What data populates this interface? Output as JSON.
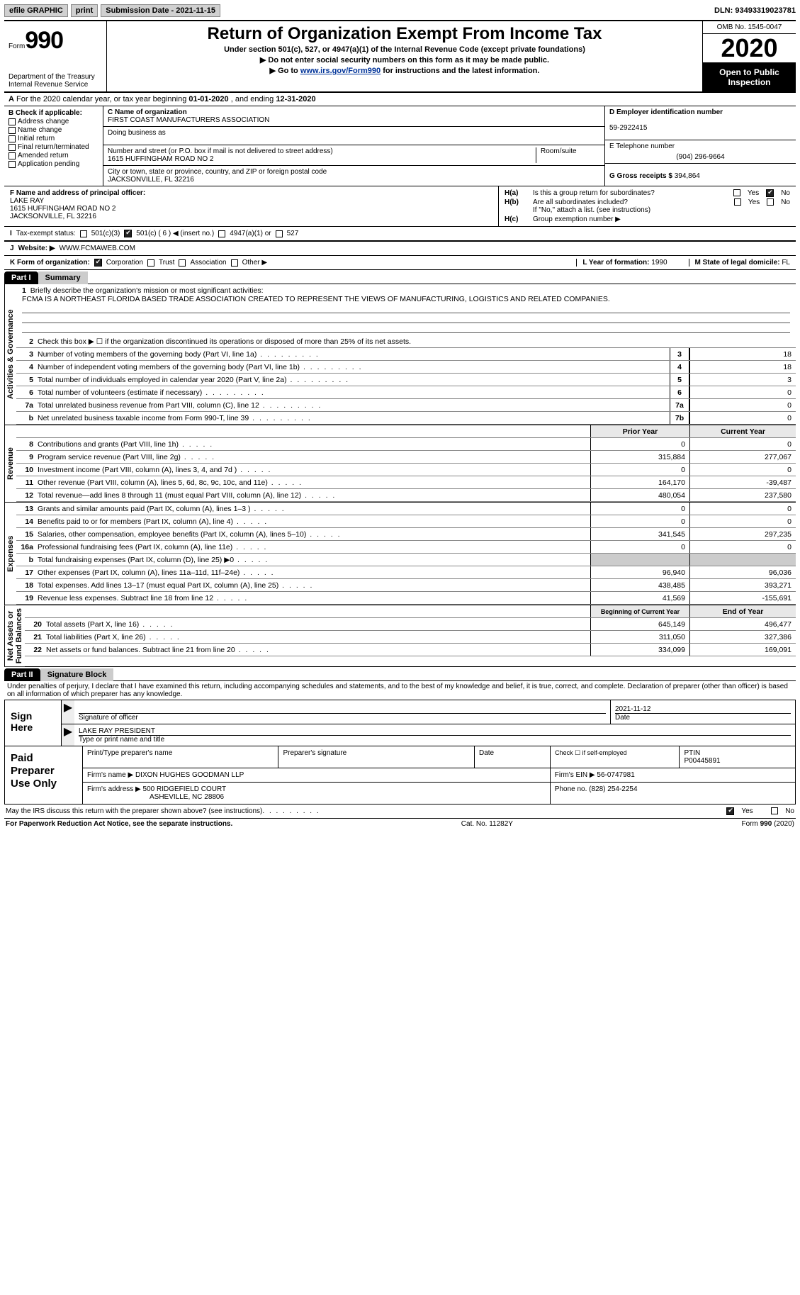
{
  "topbar": {
    "efile": "efile GRAPHIC",
    "print": "print",
    "sub_label": "Submission Date - ",
    "sub_date": "2021-11-15",
    "dln_label": "DLN: ",
    "dln": "93493319023781"
  },
  "header": {
    "form_word": "Form",
    "form_num": "990",
    "dept": "Department of the Treasury\nInternal Revenue Service",
    "title": "Return of Organization Exempt From Income Tax",
    "sub1": "Under section 501(c), 527, or 4947(a)(1) of the Internal Revenue Code (except private foundations)",
    "sub2": "Do not enter social security numbers on this form as it may be made public.",
    "sub3_pre": "Go to ",
    "sub3_link": "www.irs.gov/Form990",
    "sub3_post": " for instructions and the latest information.",
    "omb": "OMB No. 1545-0047",
    "year": "2020",
    "open": "Open to Public Inspection"
  },
  "rowA": {
    "text_pre": "For the 2020 calendar year, or tax year beginning ",
    "begin": "01-01-2020",
    "mid": " , and ending ",
    "end": "12-31-2020"
  },
  "colB": {
    "header": "B Check if applicable:",
    "items": [
      "Address change",
      "Name change",
      "Initial return",
      "Final return/terminated",
      "Amended return",
      "Application pending"
    ]
  },
  "colC": {
    "c_label": "C Name of organization",
    "org": "FIRST COAST MANUFACTURERS ASSOCIATION",
    "dba_label": "Doing business as",
    "addr_label": "Number and street (or P.O. box if mail is not delivered to street address)",
    "room_label": "Room/suite",
    "addr": "1615 HUFFINGHAM ROAD NO 2",
    "city_label": "City or town, state or province, country, and ZIP or foreign postal code",
    "city": "JACKSONVILLE, FL  32216"
  },
  "colDE": {
    "d_label": "D Employer identification number",
    "ein": "59-2922415",
    "e_label": "E Telephone number",
    "phone": "(904) 296-9664",
    "g_label": "G Gross receipts $ ",
    "gross": "394,864"
  },
  "rowF": {
    "label": "F  Name and address of principal officer:",
    "name": "LAKE RAY",
    "addr1": "1615 HUFFINGHAM ROAD NO 2",
    "addr2": "JACKSONVILLE, FL  32216"
  },
  "rowH": {
    "ha": "Is this a group return for subordinates?",
    "hb": "Are all subordinates included?",
    "hb_note": "If \"No,\" attach a list. (see instructions)",
    "hc": "Group exemption number ▶",
    "ha_l": "H(a)",
    "hb_l": "H(b)",
    "hc_l": "H(c)",
    "yes": "Yes",
    "no": "No"
  },
  "rowI": {
    "label": "Tax-exempt status:",
    "o1": "501(c)(3)",
    "o2": "501(c) ( 6 ) ◀ (insert no.)",
    "o3": "4947(a)(1) or",
    "o4": "527"
  },
  "rowJ": {
    "label": "Website: ▶",
    "val": "WWW.FCMAWEB.COM"
  },
  "rowK": {
    "label": "K Form of organization:",
    "corp": "Corporation",
    "trust": "Trust",
    "assoc": "Association",
    "other": "Other ▶",
    "l_label": "L Year of formation: ",
    "l_val": "1990",
    "m_label": "M State of legal domicile: ",
    "m_val": "FL"
  },
  "part1": {
    "tag": "Part I",
    "title": "Summary"
  },
  "briefly": {
    "num": "1",
    "label": "Briefly describe the organization's mission or most significant activities:",
    "text": "FCMA IS A NORTHEAST FLORIDA BASED TRADE ASSOCIATION CREATED TO REPRESENT THE VIEWS OF MANUFACTURING, LOGISTICS AND RELATED COMPANIES."
  },
  "side": {
    "ag": "Activities & Governance",
    "rev": "Revenue",
    "exp": "Expenses",
    "na": "Net Assets or\nFund Balances"
  },
  "lines_ag": [
    {
      "n": "2",
      "d": "Check this box ▶ ☐  if the organization discontinued its operations or disposed of more than 25% of its net assets."
    },
    {
      "n": "3",
      "d": "Number of voting members of the governing body (Part VI, line 1a)",
      "box": "3",
      "v": "18"
    },
    {
      "n": "4",
      "d": "Number of independent voting members of the governing body (Part VI, line 1b)",
      "box": "4",
      "v": "18"
    },
    {
      "n": "5",
      "d": "Total number of individuals employed in calendar year 2020 (Part V, line 2a)",
      "box": "5",
      "v": "3"
    },
    {
      "n": "6",
      "d": "Total number of volunteers (estimate if necessary)",
      "box": "6",
      "v": "0"
    },
    {
      "n": "7a",
      "d": "Total unrelated business revenue from Part VIII, column (C), line 12",
      "box": "7a",
      "v": "0"
    },
    {
      "n": "b",
      "d": "Net unrelated business taxable income from Form 990-T, line 39",
      "box": "7b",
      "v": "0"
    }
  ],
  "headrow": {
    "prior": "Prior Year",
    "curr": "Current Year"
  },
  "lines_rev": [
    {
      "n": "8",
      "d": "Contributions and grants (Part VIII, line 1h)",
      "p": "0",
      "c": "0"
    },
    {
      "n": "9",
      "d": "Program service revenue (Part VIII, line 2g)",
      "p": "315,884",
      "c": "277,067"
    },
    {
      "n": "10",
      "d": "Investment income (Part VIII, column (A), lines 3, 4, and 7d )",
      "p": "0",
      "c": "0"
    },
    {
      "n": "11",
      "d": "Other revenue (Part VIII, column (A), lines 5, 6d, 8c, 9c, 10c, and 11e)",
      "p": "164,170",
      "c": "-39,487"
    },
    {
      "n": "12",
      "d": "Total revenue—add lines 8 through 11 (must equal Part VIII, column (A), line 12)",
      "p": "480,054",
      "c": "237,580"
    }
  ],
  "lines_exp": [
    {
      "n": "13",
      "d": "Grants and similar amounts paid (Part IX, column (A), lines 1–3 )",
      "p": "0",
      "c": "0"
    },
    {
      "n": "14",
      "d": "Benefits paid to or for members (Part IX, column (A), line 4)",
      "p": "0",
      "c": "0"
    },
    {
      "n": "15",
      "d": "Salaries, other compensation, employee benefits (Part IX, column (A), lines 5–10)",
      "p": "341,545",
      "c": "297,235"
    },
    {
      "n": "16a",
      "d": "Professional fundraising fees (Part IX, column (A), line 11e)",
      "p": "0",
      "c": "0"
    },
    {
      "n": "b",
      "d": "Total fundraising expenses (Part IX, column (D), line 25) ▶0",
      "p": "__shade__",
      "c": "__shade__"
    },
    {
      "n": "17",
      "d": "Other expenses (Part IX, column (A), lines 11a–11d, 11f–24e)",
      "p": "96,940",
      "c": "96,036"
    },
    {
      "n": "18",
      "d": "Total expenses. Add lines 13–17 (must equal Part IX, column (A), line 25)",
      "p": "438,485",
      "c": "393,271"
    },
    {
      "n": "19",
      "d": "Revenue less expenses. Subtract line 18 from line 12",
      "p": "41,569",
      "c": "-155,691"
    }
  ],
  "headrow2": {
    "prior": "Beginning of Current Year",
    "curr": "End of Year"
  },
  "lines_na": [
    {
      "n": "20",
      "d": "Total assets (Part X, line 16)",
      "p": "645,149",
      "c": "496,477"
    },
    {
      "n": "21",
      "d": "Total liabilities (Part X, line 26)",
      "p": "311,050",
      "c": "327,386"
    },
    {
      "n": "22",
      "d": "Net assets or fund balances. Subtract line 21 from line 20",
      "p": "334,099",
      "c": "169,091"
    }
  ],
  "part2": {
    "tag": "Part II",
    "title": "Signature Block"
  },
  "penalties": "Under penalties of perjury, I declare that I have examined this return, including accompanying schedules and statements, and to the best of my knowledge and belief, it is true, correct, and complete. Declaration of preparer (other than officer) is based on all information of which preparer has any knowledge.",
  "sign": {
    "label": "Sign Here",
    "sig_label": "Signature of officer",
    "date_label": "Date",
    "date": "2021-11-12",
    "name": "LAKE RAY PRESIDENT",
    "name_label": "Type or print name and title"
  },
  "paid": {
    "label": "Paid Preparer Use Only",
    "h1": "Print/Type preparer's name",
    "h2": "Preparer's signature",
    "h3": "Date",
    "h4_top": "Check ☐ if self-employed",
    "h5": "PTIN",
    "ptin": "P00445891",
    "firm_label": "Firm's name   ▶",
    "firm": "DIXON HUGHES GOODMAN LLP",
    "ein_label": "Firm's EIN ▶",
    "ein": "56-0747981",
    "addr_label": "Firm's address ▶",
    "addr1": "500 RIDGEFIELD COURT",
    "addr2": "ASHEVILLE, NC  28806",
    "phone_label": "Phone no. ",
    "phone": "(828) 254-2254"
  },
  "may": {
    "text": "May the IRS discuss this return with the preparer shown above? (see instructions)",
    "yes": "Yes",
    "no": "No"
  },
  "footer": {
    "pra": "For Paperwork Reduction Act Notice, see the separate instructions.",
    "cat": "Cat. No. 11282Y",
    "form": "Form 990 (2020)"
  },
  "colors": {
    "link": "#003399",
    "shade": "#cccccc"
  }
}
